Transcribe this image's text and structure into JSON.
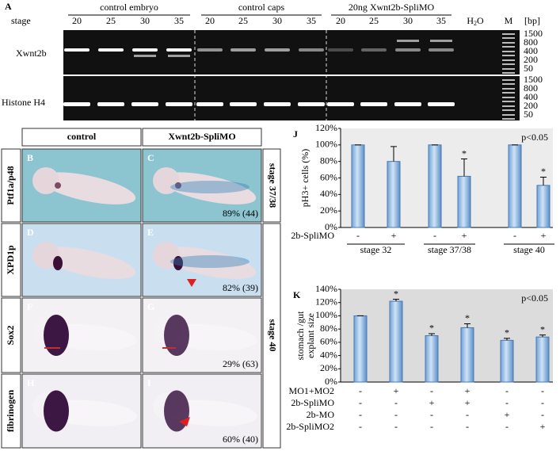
{
  "gel": {
    "label": "A",
    "stage_label": "stage",
    "groups": [
      {
        "name": "control embryo",
        "stages": [
          "20",
          "25",
          "30",
          "35"
        ]
      },
      {
        "name": "control caps",
        "stages": [
          "20",
          "25",
          "30",
          "35"
        ]
      },
      {
        "name": "20ng Xwnt2b-SpliMO",
        "stages": [
          "20",
          "25",
          "30",
          "35"
        ]
      }
    ],
    "water_lane": [
      "H",
      "2",
      "O"
    ],
    "marker_lane": "M",
    "unit": "[bp]",
    "rows": [
      {
        "name": "Xwnt2b",
        "ladder": [
          "1500",
          "800",
          "400",
          "200",
          "50"
        ]
      },
      {
        "name": "Histone H4",
        "ladder": [
          "1500",
          "800",
          "400",
          "200",
          "50"
        ]
      }
    ]
  },
  "panels": {
    "column_headers": [
      "control",
      "Xwnt2b-SpliMO"
    ],
    "rows": [
      {
        "marker": "Ptf1a/p48",
        "letters": [
          "B",
          "C"
        ],
        "score": "89% (44)"
      },
      {
        "marker": "XPD1p",
        "letters": [
          "D",
          "E"
        ],
        "score": "82% (39)"
      },
      {
        "marker": "Sox2",
        "letters": [
          "F",
          "G"
        ],
        "score": "29% (63)"
      },
      {
        "marker": "fibrinogen",
        "letters": [
          "H",
          "I"
        ],
        "score": "60% (40)"
      }
    ],
    "stage_labels": [
      "stage 37/38",
      "stage 40"
    ]
  },
  "chart_data": [
    {
      "type": "bar",
      "label": "J",
      "ylabel": "pH3+ cells (%)",
      "annotation": "p<0.05",
      "background": "#ececec",
      "color": "#9dc3e6",
      "ylim": [
        0,
        120
      ],
      "yticks": [
        {
          "value": 0,
          "label": "0%"
        },
        {
          "value": 20,
          "label": "20%"
        },
        {
          "value": 40,
          "label": "40%"
        },
        {
          "value": 60,
          "label": "60%"
        },
        {
          "value": 80,
          "label": "80%"
        },
        {
          "value": 100,
          "label": "100%"
        },
        {
          "value": 120,
          "label": "120%"
        }
      ],
      "values": [
        100,
        80,
        100,
        62,
        100,
        51
      ],
      "errors": [
        0,
        18,
        0,
        21,
        0,
        10
      ],
      "significant": [
        false,
        false,
        false,
        true,
        false,
        true
      ],
      "significance_label": "*",
      "conditions": [
        {
          "name": "2b-SpliMO",
          "signs": [
            "-",
            "+",
            "-",
            "+",
            "-",
            "+"
          ]
        }
      ],
      "groups": [
        "stage 32",
        "stage 37/38",
        "stage 40"
      ]
    },
    {
      "type": "bar",
      "label": "K",
      "ylabel": [
        "stomach /gut",
        "explant size"
      ],
      "annotation": "p<0.05",
      "background": "#dcdcdc",
      "color": "#9dc3e6",
      "ylim": [
        0,
        140
      ],
      "yticks": [
        {
          "value": 0,
          "label": "0%"
        },
        {
          "value": 20,
          "label": "20%"
        },
        {
          "value": 40,
          "label": "40%"
        },
        {
          "value": 60,
          "label": "60%"
        },
        {
          "value": 80,
          "label": "80%"
        },
        {
          "value": 100,
          "label": "100%"
        },
        {
          "value": 120,
          "label": "120%"
        },
        {
          "value": 140,
          "label": "140%"
        }
      ],
      "values": [
        100,
        122,
        70,
        82,
        63,
        68
      ],
      "errors": [
        0,
        3,
        3,
        6,
        3,
        3
      ],
      "significant": [
        false,
        true,
        true,
        true,
        true,
        true
      ],
      "significance_label": "*",
      "conditions": [
        {
          "name": "MO1+MO2",
          "signs": [
            "-",
            "+",
            "-",
            "+",
            "-",
            "-"
          ]
        },
        {
          "name": "2b-SpliMO",
          "signs": [
            "-",
            "-",
            "+",
            "+",
            "-",
            "-"
          ]
        },
        {
          "name": "2b-MO",
          "signs": [
            "-",
            "-",
            "-",
            "-",
            "+",
            "-"
          ]
        },
        {
          "name": "2b-SpliMO2",
          "signs": [
            "-",
            "-",
            "-",
            "-",
            "-",
            "+"
          ]
        }
      ]
    }
  ]
}
